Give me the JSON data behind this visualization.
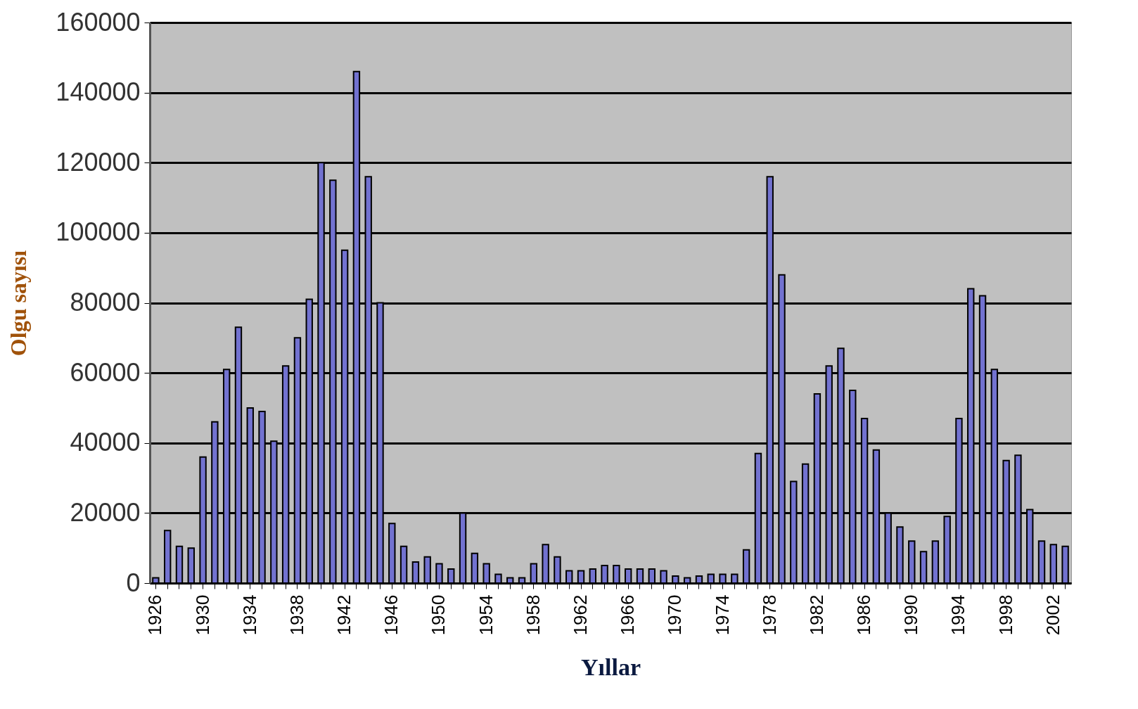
{
  "chart_data": {
    "type": "bar",
    "xlabel": "Yıllar",
    "ylabel": "Olgu sayısı",
    "categories": [
      "1926",
      null,
      null,
      null,
      "1930",
      null,
      null,
      null,
      "1934",
      null,
      null,
      null,
      "1938",
      null,
      null,
      null,
      "1942",
      null,
      null,
      null,
      "1946",
      null,
      null,
      null,
      "1950",
      null,
      null,
      null,
      "1954",
      null,
      null,
      null,
      "1958",
      null,
      null,
      null,
      "1962",
      null,
      null,
      null,
      "1966",
      null,
      null,
      null,
      "1970",
      null,
      null,
      null,
      "1974",
      null,
      null,
      null,
      "1978",
      null,
      null,
      null,
      "1982",
      null,
      null,
      null,
      "1986",
      null,
      null,
      null,
      "1990",
      null,
      null,
      null,
      "1994",
      null,
      null,
      null,
      "1998",
      null,
      null,
      null,
      "2002",
      null
    ],
    "values": [
      1500,
      15000,
      10500,
      10000,
      36000,
      46000,
      61000,
      73000,
      50000,
      49000,
      40500,
      62000,
      70000,
      81000,
      120000,
      115000,
      95000,
      146000,
      116000,
      80000,
      17000,
      10500,
      6000,
      7500,
      5500,
      4000,
      20000,
      8500,
      5500,
      2500,
      1500,
      1500,
      5500,
      11000,
      7500,
      3500,
      3500,
      4000,
      5000,
      5000,
      4000,
      4000,
      4000,
      3500,
      2000,
      1500,
      2000,
      2500,
      2500,
      2500,
      9500,
      37000,
      116000,
      88000,
      29000,
      34000,
      54000,
      62000,
      67000,
      55000,
      47000,
      38000,
      20000,
      16000,
      12000,
      9000,
      12000,
      19000,
      47000,
      84000,
      82000,
      61000,
      35000,
      36500,
      21000,
      12000,
      11000,
      10500
    ],
    "color": "#7272d0",
    "ylim": [
      0,
      160000
    ],
    "yticks": [
      0,
      20000,
      40000,
      60000,
      80000,
      100000,
      120000,
      140000,
      160000
    ],
    "grid": "y"
  }
}
